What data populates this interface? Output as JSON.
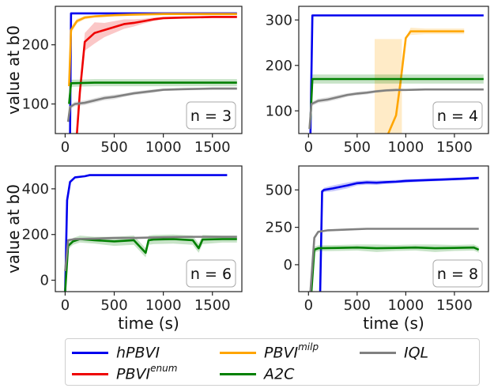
{
  "chart_data": [
    {
      "type": "line",
      "panel_label": "n = 3",
      "ylabel": "value at b0",
      "xlabel": "",
      "xlim": [
        -100,
        1800
      ],
      "ylim": [
        50,
        265
      ],
      "xticks": [
        0,
        500,
        1000,
        1500
      ],
      "yticks": [
        100,
        200
      ],
      "series": [
        {
          "name": "hPBVI",
          "color": "#0000ee",
          "x": [
            50,
            60,
            1750
          ],
          "y": [
            50,
            253,
            253
          ]
        },
        {
          "name": "PBVI^enum",
          "color": "#ee0000",
          "x": [
            120,
            150,
            200,
            300,
            400,
            500,
            600,
            700,
            800,
            900,
            1000,
            1200,
            1500,
            1750
          ],
          "y": [
            50,
            120,
            205,
            220,
            225,
            230,
            235,
            237,
            240,
            243,
            245,
            246,
            247,
            247
          ],
          "band": [
            0,
            0,
            15,
            18,
            12,
            10,
            8,
            6,
            4,
            3,
            2,
            2,
            2,
            2
          ]
        },
        {
          "name": "PBVI^milp",
          "color": "#ffa500",
          "x": [
            40,
            60,
            120,
            200,
            300,
            500,
            700,
            1000,
            1750
          ],
          "y": [
            130,
            225,
            240,
            246,
            248,
            250,
            251,
            252,
            252
          ],
          "band": [
            10,
            6,
            4,
            3,
            2,
            2,
            2,
            2,
            2
          ]
        },
        {
          "name": "A2C",
          "color": "#008000",
          "x": [
            40,
            60,
            300,
            800,
            1750
          ],
          "y": [
            100,
            135,
            136,
            136,
            136
          ],
          "band": [
            5,
            6,
            6,
            6,
            6
          ]
        },
        {
          "name": "IQL",
          "color": "#808080",
          "x": [
            30,
            50,
            100,
            200,
            300,
            400,
            500,
            600,
            700,
            800,
            900,
            1000,
            1200,
            1500,
            1750
          ],
          "y": [
            70,
            95,
            100,
            102,
            106,
            110,
            112,
            115,
            118,
            120,
            122,
            124,
            125,
            126,
            126
          ],
          "band": [
            3,
            4,
            4,
            4,
            4,
            4,
            4,
            3,
            3,
            3,
            3,
            2,
            2,
            2,
            2
          ]
        }
      ]
    },
    {
      "type": "line",
      "panel_label": "n = 4",
      "ylabel": "",
      "xlabel": "",
      "xlim": [
        -100,
        1850
      ],
      "ylim": [
        50,
        330
      ],
      "xticks": [
        0,
        500,
        1000,
        1500
      ],
      "yticks": [
        100,
        200,
        300
      ],
      "series": [
        {
          "name": "hPBVI",
          "color": "#0000ee",
          "x": [
            20,
            40,
            1800
          ],
          "y": [
            50,
            310,
            310
          ]
        },
        {
          "name": "PBVI^milp",
          "color": "#ffa500",
          "x": [
            820,
            900,
            950,
            1000,
            1050,
            1200,
            1600
          ],
          "y": [
            50,
            90,
            170,
            260,
            275,
            275,
            275
          ],
          "band": [
            0,
            0,
            0,
            0,
            8,
            6,
            6
          ],
          "shade": {
            "x0": 680,
            "x1": 960,
            "y0": 50,
            "y1": 258
          }
        },
        {
          "name": "A2C",
          "color": "#008000",
          "x": [
            20,
            40,
            500,
            1000,
            1800
          ],
          "y": [
            80,
            170,
            170,
            170,
            170
          ],
          "band": [
            5,
            10,
            10,
            10,
            10
          ]
        },
        {
          "name": "IQL",
          "color": "#808080",
          "x": [
            10,
            30,
            100,
            200,
            300,
            400,
            500,
            600,
            700,
            800,
            900,
            1000,
            1200,
            1500,
            1800
          ],
          "y": [
            60,
            115,
            122,
            125,
            130,
            135,
            138,
            140,
            143,
            145,
            146,
            146,
            147,
            147,
            147
          ],
          "band": [
            3,
            5,
            5,
            5,
            5,
            4,
            4,
            4,
            3,
            3,
            3,
            2,
            2,
            2,
            2
          ]
        }
      ]
    },
    {
      "type": "line",
      "panel_label": "n = 6",
      "ylabel": "value at b0",
      "xlabel": "time (s)",
      "xlim": [
        -100,
        1800
      ],
      "ylim": [
        -50,
        500
      ],
      "xticks": [
        0,
        500,
        1000,
        1500
      ],
      "yticks": [
        0,
        200,
        400
      ],
      "series": [
        {
          "name": "hPBVI",
          "color": "#0000ee",
          "x": [
            0,
            20,
            50,
            100,
            200,
            250,
            1650
          ],
          "y": [
            -50,
            350,
            430,
            450,
            455,
            460,
            460
          ]
        },
        {
          "name": "A2C",
          "color": "#008000",
          "x": [
            0,
            30,
            80,
            150,
            300,
            500,
            700,
            820,
            850,
            900,
            1100,
            1300,
            1360,
            1400,
            1600,
            1750
          ],
          "y": [
            -50,
            150,
            170,
            180,
            175,
            170,
            175,
            120,
            175,
            178,
            180,
            175,
            140,
            178,
            180,
            180
          ],
          "band": [
            0,
            15,
            15,
            15,
            15,
            20,
            20,
            20,
            20,
            20,
            20,
            20,
            20,
            20,
            15,
            15
          ]
        },
        {
          "name": "IQL",
          "color": "#808080",
          "x": [
            0,
            30,
            100,
            300,
            500,
            700,
            1000,
            1300,
            1500,
            1750
          ],
          "y": [
            40,
            175,
            180,
            182,
            185,
            185,
            188,
            190,
            190,
            190
          ],
          "band": [
            3,
            5,
            5,
            5,
            5,
            5,
            4,
            4,
            3,
            3
          ]
        }
      ]
    },
    {
      "type": "line",
      "panel_label": "n = 8",
      "ylabel": "",
      "xlabel": "time (s)",
      "xlim": [
        -100,
        1850
      ],
      "ylim": [
        -180,
        660
      ],
      "xticks": [
        0,
        500,
        1000,
        1500
      ],
      "yticks": [
        0,
        250,
        500
      ],
      "series": [
        {
          "name": "hPBVI",
          "color": "#0000ee",
          "x": [
            120,
            140,
            160,
            250,
            400,
            500,
            600,
            700,
            800,
            900,
            1000,
            1200,
            1400,
            1600,
            1750
          ],
          "y": [
            -180,
            490,
            500,
            510,
            530,
            545,
            550,
            548,
            552,
            555,
            560,
            565,
            570,
            575,
            580
          ],
          "band": [
            0,
            10,
            15,
            20,
            20,
            15,
            15,
            15,
            12,
            12,
            12,
            10,
            10,
            10,
            10
          ]
        },
        {
          "name": "A2C",
          "color": "#008000",
          "x": [
            30,
            60,
            100,
            300,
            500,
            700,
            900,
            1100,
            1300,
            1500,
            1700,
            1750
          ],
          "y": [
            -180,
            100,
            110,
            112,
            115,
            110,
            112,
            115,
            110,
            112,
            115,
            100
          ],
          "band": [
            0,
            20,
            20,
            20,
            20,
            25,
            20,
            20,
            25,
            20,
            20,
            20
          ]
        },
        {
          "name": "IQL",
          "color": "#808080",
          "x": [
            20,
            60,
            100,
            200,
            400,
            600,
            1000,
            1400,
            1750
          ],
          "y": [
            -180,
            180,
            220,
            230,
            235,
            240,
            240,
            240,
            240
          ],
          "band": [
            0,
            5,
            5,
            5,
            5,
            4,
            3,
            3,
            3
          ]
        }
      ]
    }
  ],
  "legend": {
    "items": [
      {
        "base": "hPBVI",
        "sup": "",
        "color": "#0000ee"
      },
      {
        "base": "PBVI",
        "sup": "enum",
        "color": "#ee0000"
      },
      {
        "base": "PBVI",
        "sup": "milp",
        "color": "#ffa500"
      },
      {
        "base": "A2C",
        "sup": "",
        "color": "#008000"
      },
      {
        "base": "IQL",
        "sup": "",
        "color": "#808080"
      }
    ]
  }
}
